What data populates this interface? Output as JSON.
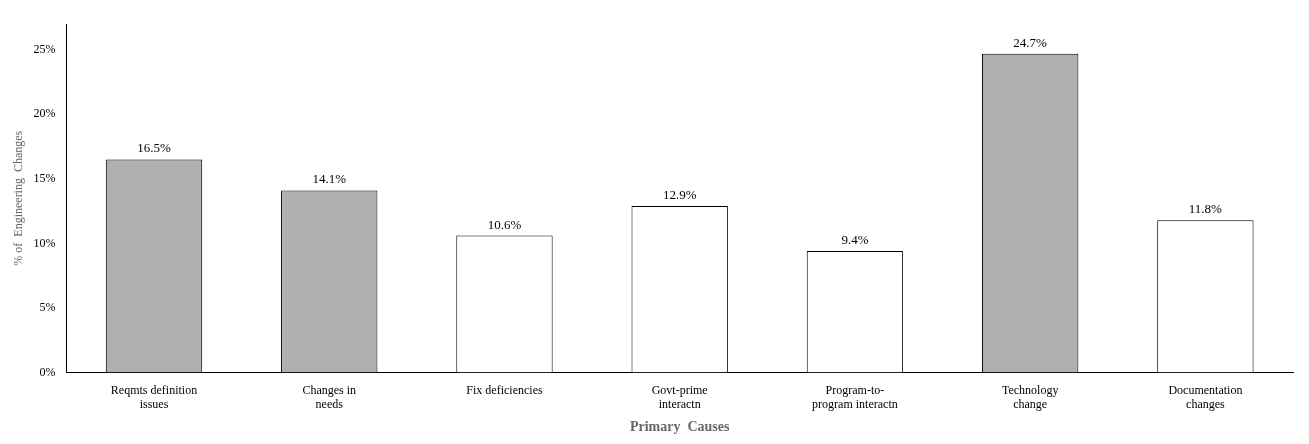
{
  "chart_data": {
    "type": "bar",
    "categories": [
      "Reqmts definition\nissues",
      "Changes in\nneeds",
      "Fix deficiencies",
      "Govt-prime\ninteractn",
      "Program-to-\nprogram interactn",
      "Technology\nchange",
      "Documentation\nchanges"
    ],
    "values": [
      16.5,
      14.1,
      10.6,
      12.9,
      9.4,
      24.7,
      11.8
    ],
    "value_labels": [
      "16.5%",
      "14.1%",
      "10.6%",
      "12.9%",
      "9.4%",
      "24.7%",
      "11.8%"
    ],
    "data_labels": true,
    "colors": [
      "#b0b0b0",
      "#b0b0b0",
      "#ffffff",
      "#ffffff",
      "#ffffff",
      "#b0b0b0",
      "#ffffff"
    ],
    "xlabel": "Primary  Causes",
    "ylabel": "% of  Engineering  Changes",
    "ylim": [
      0,
      27
    ],
    "yticks": [
      {
        "value": 0,
        "label": "0%"
      },
      {
        "value": 5,
        "label": "5%"
      },
      {
        "value": 10,
        "label": "10%"
      },
      {
        "value": 15,
        "label": "15%"
      },
      {
        "value": 20,
        "label": "20%"
      },
      {
        "value": 25,
        "label": "25%"
      }
    ],
    "grid": false
  }
}
